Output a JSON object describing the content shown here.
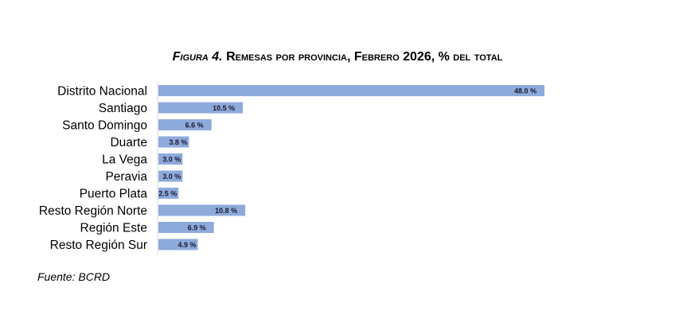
{
  "chart_data": {
    "type": "bar",
    "orientation": "horizontal",
    "title_prefix": "Figura 4.",
    "title": "Remesas por provincia, Febrero 2026, % del total",
    "categories": [
      "Distrito Nacional",
      "Santiago",
      "Santo Domingo",
      "Duarte",
      "La Vega",
      "Peravia",
      "Puerto Plata",
      "Resto Región Norte",
      "Región Este",
      "Resto Región Sur"
    ],
    "values": [
      48.0,
      10.5,
      6.6,
      3.8,
      3.0,
      3.0,
      2.5,
      10.8,
      6.9,
      4.9
    ],
    "value_labels": [
      "48.0 %",
      "10.5 %",
      "6.6 %",
      "3.8 %",
      "3.0 %",
      "3.0 %",
      "2.5 %",
      "10.8 %",
      "6.9 %",
      "4.9 %"
    ],
    "xlim": [
      0,
      48
    ],
    "grid": false,
    "legend": "none",
    "bar_color": "#8eaadb",
    "source": "Fuente: BCRD"
  }
}
